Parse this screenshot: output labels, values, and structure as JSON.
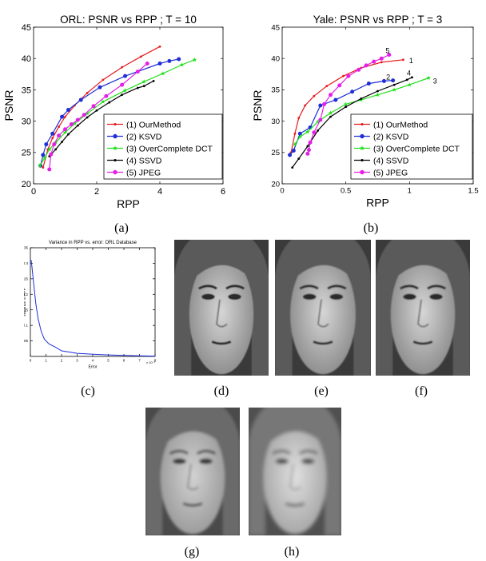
{
  "chart_data": [
    {
      "id": "a",
      "type": "line",
      "title": "ORL: PSNR vs RPP ; T = 10",
      "xlabel": "RPP",
      "ylabel": "PSNR",
      "xlim": [
        0,
        6
      ],
      "ylim": [
        20,
        45
      ],
      "xticks": [
        "0",
        "2",
        "4",
        "6"
      ],
      "yticks": [
        "20",
        "25",
        "30",
        "35",
        "40",
        "45"
      ],
      "grid": false,
      "legend_position": "bottom-right",
      "series": [
        {
          "name": "(1) OurMethod",
          "color": "#e8191c",
          "marker": "dot",
          "points": [
            [
              0.3,
              22.6
            ],
            [
              0.45,
              25.5
            ],
            [
              0.6,
              27.3
            ],
            [
              0.8,
              29.1
            ],
            [
              1.0,
              30.7
            ],
            [
              1.3,
              32.5
            ],
            [
              1.7,
              34.5
            ],
            [
              2.2,
              36.6
            ],
            [
              2.8,
              38.6
            ],
            [
              3.4,
              40.3
            ],
            [
              4.0,
              41.9
            ]
          ]
        },
        {
          "name": "(2) KSVD",
          "color": "#1f2fd6",
          "marker": "circle",
          "points": [
            [
              0.22,
              22.9
            ],
            [
              0.3,
              24.6
            ],
            [
              0.4,
              26.3
            ],
            [
              0.6,
              28.0
            ],
            [
              0.9,
              30.7
            ],
            [
              1.1,
              31.8
            ],
            [
              1.5,
              33.4
            ],
            [
              2.1,
              35.4
            ],
            [
              2.9,
              37.2
            ],
            [
              4.0,
              39.2
            ],
            [
              4.3,
              39.6
            ],
            [
              4.6,
              39.9
            ]
          ]
        },
        {
          "name": "(3) OverComplete DCT",
          "color": "#22e01a",
          "marker": "star",
          "points": [
            [
              0.2,
              22.9
            ],
            [
              0.35,
              24.1
            ],
            [
              0.5,
              25.5
            ],
            [
              0.7,
              26.6
            ],
            [
              1.0,
              28.2
            ],
            [
              1.3,
              29.6
            ],
            [
              1.7,
              31.2
            ],
            [
              2.2,
              33.1
            ],
            [
              2.9,
              34.9
            ],
            [
              3.5,
              36.3
            ],
            [
              4.1,
              37.6
            ],
            [
              4.7,
              39.0
            ],
            [
              5.1,
              39.8
            ]
          ]
        },
        {
          "name": "(4) SSVD",
          "color": "#000000",
          "marker": "dot",
          "points": [
            [
              0.5,
              24.4
            ],
            [
              0.7,
              25.5
            ],
            [
              0.9,
              26.7
            ],
            [
              1.1,
              27.9
            ],
            [
              1.4,
              29.3
            ],
            [
              1.7,
              30.6
            ],
            [
              2.0,
              31.7
            ],
            [
              2.4,
              33.0
            ],
            [
              2.8,
              34.2
            ],
            [
              3.3,
              35.3
            ],
            [
              3.5,
              35.6
            ],
            [
              3.8,
              36.4
            ]
          ]
        },
        {
          "name": "(5) JPEG",
          "color": "#e61fe6",
          "marker": "circle",
          "points": [
            [
              0.5,
              22.3
            ],
            [
              0.55,
              24.7
            ],
            [
              0.65,
              26.3
            ],
            [
              0.8,
              27.7
            ],
            [
              1.0,
              28.7
            ],
            [
              1.2,
              29.5
            ],
            [
              1.4,
              30.2
            ],
            [
              1.6,
              31.0
            ],
            [
              1.9,
              32.4
            ],
            [
              2.3,
              34.0
            ],
            [
              2.8,
              35.8
            ],
            [
              3.3,
              37.9
            ],
            [
              3.6,
              39.2
            ]
          ]
        }
      ]
    },
    {
      "id": "b",
      "type": "line",
      "title": "Yale: PSNR vs RPP ; T = 3",
      "xlabel": "RPP",
      "ylabel": "PSNR",
      "xlim": [
        0,
        1.5
      ],
      "ylim": [
        20,
        45
      ],
      "xticks": [
        "0",
        "0.5",
        "1",
        "1.5"
      ],
      "yticks": [
        "20",
        "25",
        "30",
        "35",
        "40",
        "45"
      ],
      "grid": false,
      "legend_position": "bottom-right",
      "annotations": [
        "1",
        "2",
        "3",
        "4",
        "5"
      ],
      "series": [
        {
          "name": "(1) OurMethod",
          "color": "#e8191c",
          "marker": "dot",
          "points": [
            [
              0.07,
              25.0
            ],
            [
              0.1,
              28.0
            ],
            [
              0.13,
              30.5
            ],
            [
              0.18,
              32.5
            ],
            [
              0.25,
              34.0
            ],
            [
              0.35,
              35.6
            ],
            [
              0.48,
              37.2
            ],
            [
              0.62,
              38.5
            ],
            [
              0.78,
              39.4
            ],
            [
              0.95,
              39.8
            ]
          ]
        },
        {
          "name": "(2) KSVD",
          "color": "#1f2fd6",
          "marker": "circle",
          "points": [
            [
              0.06,
              24.6
            ],
            [
              0.09,
              25.3
            ],
            [
              0.14,
              28.0
            ],
            [
              0.22,
              29.0
            ],
            [
              0.3,
              32.5
            ],
            [
              0.42,
              33.4
            ],
            [
              0.55,
              34.7
            ],
            [
              0.68,
              36.0
            ],
            [
              0.8,
              36.4
            ],
            [
              0.87,
              36.5
            ]
          ]
        },
        {
          "name": "(3) OverComplete DCT",
          "color": "#22e01a",
          "marker": "star",
          "points": [
            [
              0.1,
              26.3
            ],
            [
              0.14,
              27.5
            ],
            [
              0.2,
              28.3
            ],
            [
              0.28,
              29.9
            ],
            [
              0.38,
              31.3
            ],
            [
              0.5,
              32.7
            ],
            [
              0.62,
              33.4
            ],
            [
              0.75,
              34.2
            ],
            [
              0.88,
              35.0
            ],
            [
              1.0,
              35.8
            ],
            [
              1.15,
              36.9
            ]
          ]
        },
        {
          "name": "(4) SSVD",
          "color": "#000000",
          "marker": "dot",
          "points": [
            [
              0.08,
              22.6
            ],
            [
              0.13,
              24.0
            ],
            [
              0.2,
              26.0
            ],
            [
              0.28,
              28.5
            ],
            [
              0.38,
              30.7
            ],
            [
              0.5,
              32.3
            ],
            [
              0.62,
              33.6
            ],
            [
              0.75,
              34.8
            ],
            [
              0.88,
              35.8
            ],
            [
              0.98,
              36.6
            ],
            [
              1.02,
              37.0
            ]
          ]
        },
        {
          "name": "(5) JPEG",
          "color": "#e61fe6",
          "marker": "circle",
          "points": [
            [
              0.2,
              24.8
            ],
            [
              0.21,
              25.4
            ],
            [
              0.22,
              26.6
            ],
            [
              0.25,
              28.2
            ],
            [
              0.3,
              30.2
            ],
            [
              0.33,
              32.7
            ],
            [
              0.38,
              34.2
            ],
            [
              0.45,
              35.7
            ],
            [
              0.52,
              37.2
            ],
            [
              0.6,
              38.2
            ],
            [
              0.66,
              38.9
            ],
            [
              0.72,
              39.5
            ],
            [
              0.78,
              40.0
            ],
            [
              0.84,
              40.6
            ]
          ]
        }
      ]
    },
    {
      "id": "c",
      "type": "line",
      "title": "Variance in RPP vs. error: ORL Database",
      "xlabel": "Error",
      "ylabel": "Variance in RPP",
      "xlim": [
        0,
        8
      ],
      "ylim": [
        0,
        0.35
      ],
      "x_multiplier": "x 10⁻³",
      "xticks": [
        "0",
        "1",
        "2",
        "3",
        "4",
        "5",
        "6",
        "7",
        "8"
      ],
      "yticks": [
        "0.05",
        "0.1",
        "0.15",
        "0.2",
        "0.25",
        "0.3",
        "0.35"
      ],
      "series": [
        {
          "name": "",
          "color": "#1f2fd6",
          "points": [
            [
              0.05,
              0.31
            ],
            [
              0.1,
              0.29
            ],
            [
              0.2,
              0.24
            ],
            [
              0.35,
              0.17
            ],
            [
              0.5,
              0.12
            ],
            [
              0.7,
              0.08
            ],
            [
              0.9,
              0.055
            ],
            [
              1.2,
              0.04
            ],
            [
              1.6,
              0.03
            ],
            [
              2.0,
              0.018
            ],
            [
              3.0,
              0.01
            ],
            [
              4.0,
              0.007
            ],
            [
              5.0,
              0.005
            ],
            [
              6.0,
              0.003
            ],
            [
              7.0,
              0.002
            ],
            [
              8.0,
              0.001
            ]
          ]
        }
      ]
    }
  ],
  "captions": {
    "a": "(a)",
    "b": "(b)",
    "c": "(c)",
    "d": "(d)",
    "e": "(e)",
    "f": "(f)",
    "g": "(g)",
    "h": "(h)"
  }
}
